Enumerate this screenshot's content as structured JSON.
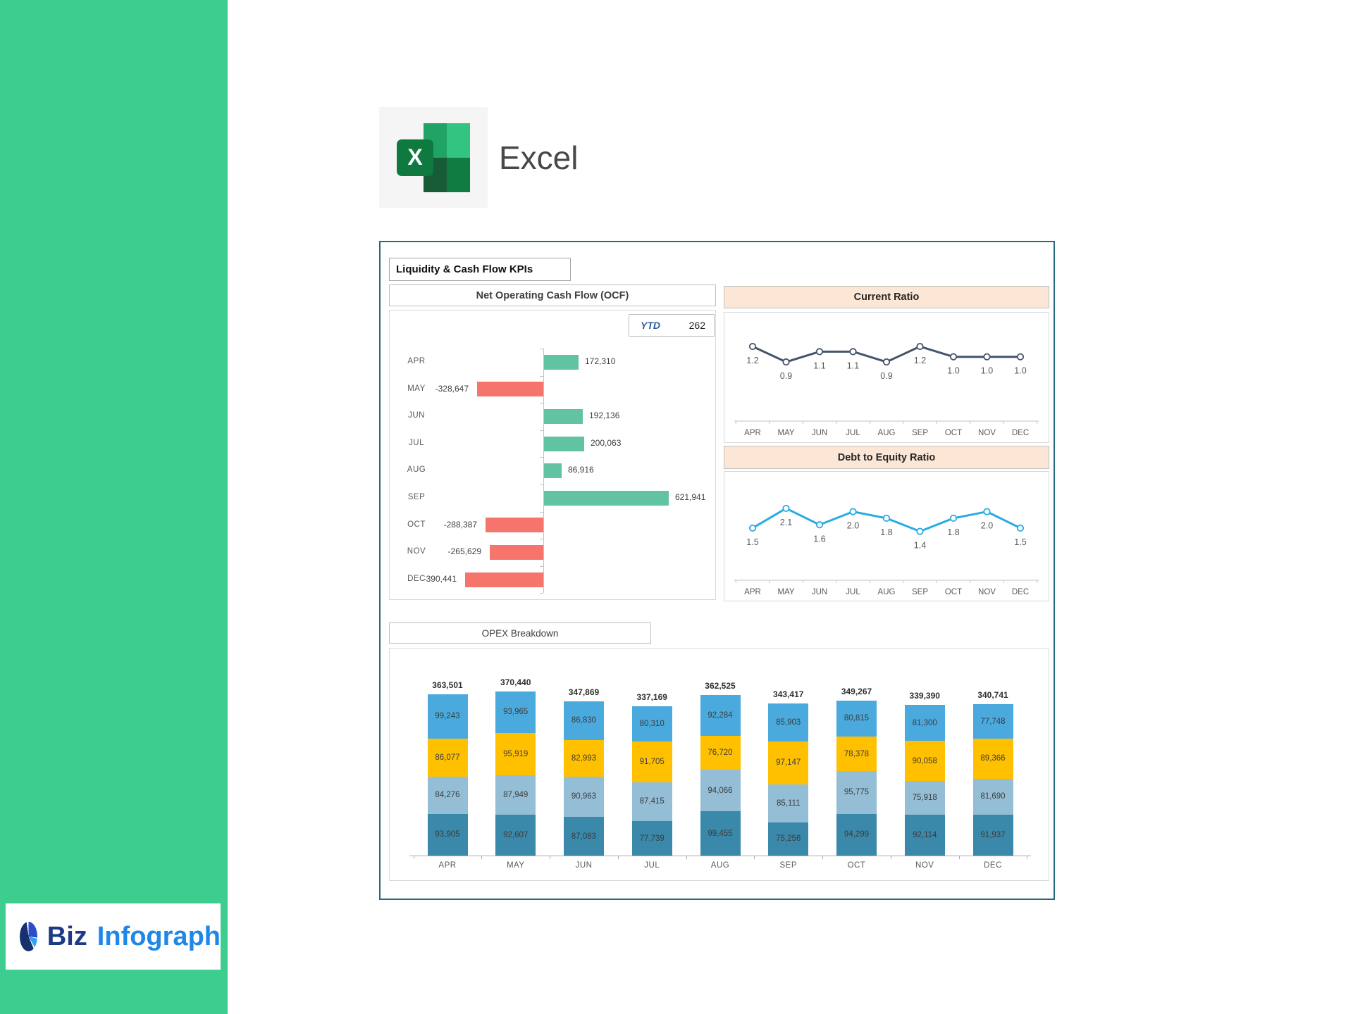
{
  "header": {
    "app_name": "Excel"
  },
  "dashboard": {
    "title": "Liquidity & Cash Flow KPIs"
  },
  "footer": {
    "logo_part1": "Biz",
    "logo_part2": "Infograph"
  },
  "colors": {
    "brand_stripe": "#3dcd8e",
    "dashboard_border": "#266b7d",
    "panel_header_peach": "#fce7d6",
    "ocf_positive": "#62c3a2",
    "ocf_negative": "#f5746c",
    "current_ratio_line": "#44546a",
    "debt_equity_line": "#29abe3",
    "opex_segment_colors_bottom_to_top": [
      "#3a88aa",
      "#93bed6",
      "#ffc000",
      "#4aa9dd"
    ],
    "ytd_label_blue": "#2f5b9f"
  },
  "chart_data": [
    {
      "type": "bar",
      "orientation": "horizontal",
      "title": "Net Operating Cash Flow (OCF)",
      "ytd_label": "YTD",
      "ytd_value": "262",
      "categories": [
        "APR",
        "MAY",
        "JUN",
        "JUL",
        "AUG",
        "SEP",
        "OCT",
        "NOV",
        "DEC"
      ],
      "values": [
        172310,
        -328647,
        192136,
        200063,
        86916,
        621941,
        -288387,
        -265629,
        -390441
      ],
      "labels": [
        "172,310",
        "-328,647",
        "192,136",
        "200,063",
        "86,916",
        "621,941",
        "-288,387",
        "-265,629",
        "-390,441"
      ],
      "positive_color": "#62c3a2",
      "negative_color": "#f5746c",
      "grid": false,
      "legend": "none"
    },
    {
      "type": "line",
      "title": "Current Ratio",
      "categories": [
        "APR",
        "MAY",
        "JUN",
        "JUL",
        "AUG",
        "SEP",
        "OCT",
        "NOV",
        "DEC"
      ],
      "values": [
        1.2,
        0.9,
        1.1,
        1.1,
        0.9,
        1.2,
        1.0,
        1.0,
        1.0
      ],
      "labels": [
        "1.2",
        "0.9",
        "1.1",
        "1.1",
        "0.9",
        "1.2",
        "1.0",
        "1.0",
        "1.0"
      ],
      "line_color": "#44546a",
      "marker": "open-circle",
      "grid": false,
      "legend": "none"
    },
    {
      "type": "line",
      "title": "Debt to Equity Ratio",
      "categories": [
        "APR",
        "MAY",
        "JUN",
        "JUL",
        "AUG",
        "SEP",
        "OCT",
        "NOV",
        "DEC"
      ],
      "values": [
        1.5,
        2.1,
        1.6,
        2.0,
        1.8,
        1.4,
        1.8,
        2.0,
        1.5
      ],
      "labels": [
        "1.5",
        "2.1",
        "1.6",
        "2.0",
        "1.8",
        "1.4",
        "1.8",
        "2.0",
        "1.5"
      ],
      "line_color": "#29abe3",
      "marker": "open-circle",
      "grid": false,
      "legend": "none"
    },
    {
      "type": "bar",
      "stacked": true,
      "title": "OPEX Breakdown",
      "categories": [
        "APR",
        "MAY",
        "JUN",
        "JUL",
        "AUG",
        "SEP",
        "OCT",
        "NOV",
        "DEC"
      ],
      "series": [
        {
          "name": "segment-1-bottom",
          "color": "#3a88aa",
          "values": [
            93905,
            92607,
            87083,
            77739,
            99455,
            75256,
            94299,
            92114,
            91937
          ],
          "labels": [
            "93,905",
            "92,607",
            "87,083",
            "77,739",
            "99,455",
            "75,256",
            "94,299",
            "92,114",
            "91,937"
          ]
        },
        {
          "name": "segment-2",
          "color": "#93bed6",
          "values": [
            84276,
            87949,
            90963,
            87415,
            94066,
            85111,
            95775,
            75918,
            81690
          ],
          "labels": [
            "84,276",
            "87,949",
            "90,963",
            "87,415",
            "94,066",
            "85,111",
            "95,775",
            "75,918",
            "81,690"
          ]
        },
        {
          "name": "segment-3",
          "color": "#ffc000",
          "values": [
            86077,
            95919,
            82993,
            91705,
            76720,
            97147,
            78378,
            90058,
            89366
          ],
          "labels": [
            "86,077",
            "95,919",
            "82,993",
            "91,705",
            "76,720",
            "97,147",
            "78,378",
            "90,058",
            "89,366"
          ]
        },
        {
          "name": "segment-4-top",
          "color": "#4aa9dd",
          "values": [
            99243,
            93965,
            86830,
            80310,
            92284,
            85903,
            80815,
            81300,
            77748
          ],
          "labels": [
            "99,243",
            "93,965",
            "86,830",
            "80,310",
            "92,284",
            "85,903",
            "80,815",
            "81,300",
            "77,748"
          ]
        }
      ],
      "totals": [
        363501,
        370440,
        347869,
        337169,
        362525,
        343417,
        349267,
        339390,
        340741
      ],
      "total_labels": [
        "363,501",
        "370,440",
        "347,869",
        "337,169",
        "362,525",
        "343,417",
        "349,267",
        "339,390",
        "340,741"
      ],
      "grid": false,
      "legend": "none"
    }
  ]
}
